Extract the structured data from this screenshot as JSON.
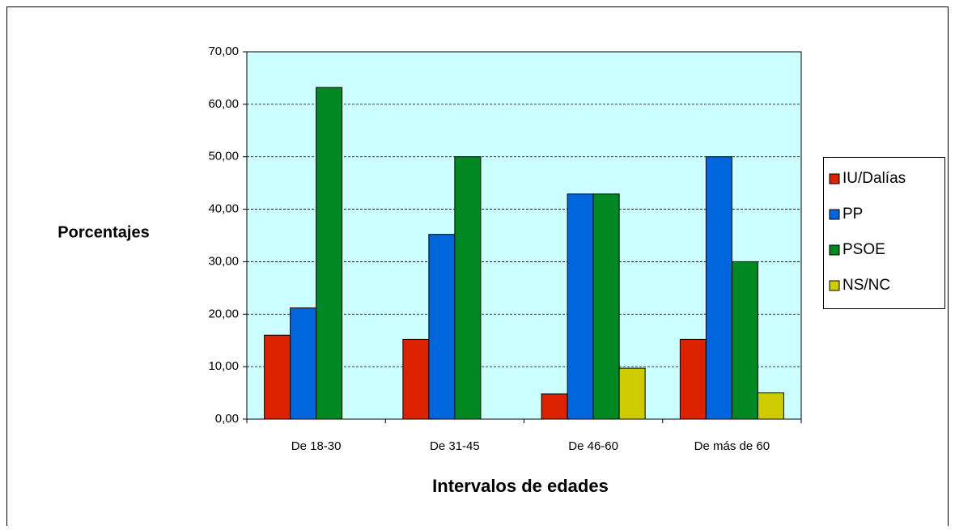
{
  "chart_data": {
    "type": "bar",
    "xlabel": "Intervalos de edades",
    "ylabel": "Porcentajes",
    "categories": [
      "De 18-30",
      "De 31-45",
      "De 46-60",
      "De más de 60"
    ],
    "series": [
      {
        "name": "IU/Dalías",
        "color": "#dd2200",
        "values": [
          16.0,
          15.2,
          4.8,
          15.2
        ]
      },
      {
        "name": "PP",
        "color": "#0066dd",
        "values": [
          21.2,
          35.2,
          42.9,
          50.0
        ]
      },
      {
        "name": "PSOE",
        "color": "#008822",
        "values": [
          63.2,
          50.0,
          42.9,
          30.0
        ]
      },
      {
        "name": "NS/NC",
        "color": "#cccc00",
        "values": [
          0,
          0,
          9.7,
          5.0
        ]
      }
    ],
    "ylim": [
      0,
      70
    ],
    "yticks": [
      {
        "value": 0,
        "label": "0,00"
      },
      {
        "value": 10,
        "label": "10,00"
      },
      {
        "value": 20,
        "label": "20,00"
      },
      {
        "value": 30,
        "label": "30,00"
      },
      {
        "value": 40,
        "label": "40,00"
      },
      {
        "value": 50,
        "label": "50,00"
      },
      {
        "value": 60,
        "label": "60,00"
      },
      {
        "value": 70,
        "label": "70,00"
      }
    ],
    "grid": true,
    "legend": "right",
    "plot_background": "#ccffff"
  }
}
